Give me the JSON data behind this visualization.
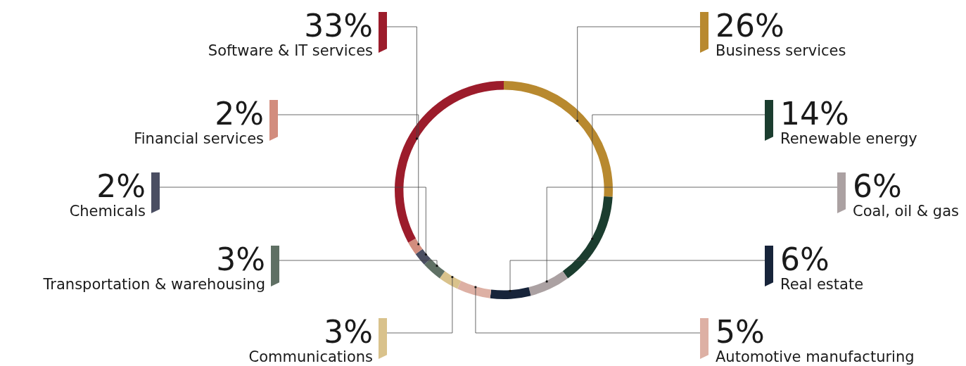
{
  "chart_data": {
    "type": "donut",
    "categories": [
      "Business services",
      "Renewable energy",
      "Coal, oil & gas",
      "Real estate",
      "Automotive manufacturing",
      "Communications",
      "Transportation & warehousing",
      "Chemicals",
      "Financial services",
      "Software & IT services"
    ],
    "values": [
      26,
      14,
      6,
      6,
      5,
      3,
      3,
      2,
      2,
      33
    ],
    "value_labels": [
      "26%",
      "14%",
      "6%",
      "6%",
      "5%",
      "3%",
      "3%",
      "2%",
      "2%",
      "33%"
    ],
    "colors": [
      "#b8892f",
      "#1b3d2f",
      "#aba1a2",
      "#17243a",
      "#ddb0a4",
      "#d9c28c",
      "#5f7064",
      "#4a4e62",
      "#d28d7e",
      "#9c1c2b"
    ],
    "legend": false
  }
}
